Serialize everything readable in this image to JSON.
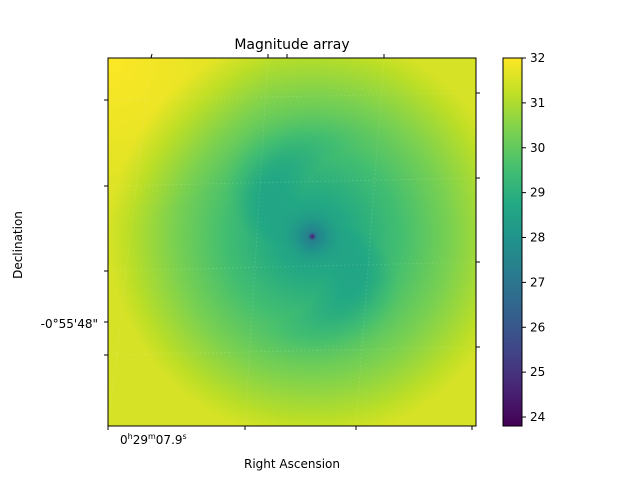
{
  "chart_data": {
    "type": "heatmap",
    "title": "Magnitude array",
    "xlabel": "Right Ascension",
    "ylabel": "Declination",
    "x_tick_label": {
      "h": "0",
      "m": "29",
      "s": "07.9"
    },
    "y_tick_label": "-0°55'48\"",
    "colormap": "viridis",
    "colorbar": {
      "min": 23.8,
      "max": 32,
      "ticks": [
        24,
        25,
        26,
        27,
        28,
        29,
        30,
        31,
        32
      ]
    },
    "field": {
      "center_value": 23.8,
      "core_value": 27.3,
      "disk_value": 28.3,
      "edge_value": 31.5,
      "corner_value": 32
    },
    "grid": true
  }
}
